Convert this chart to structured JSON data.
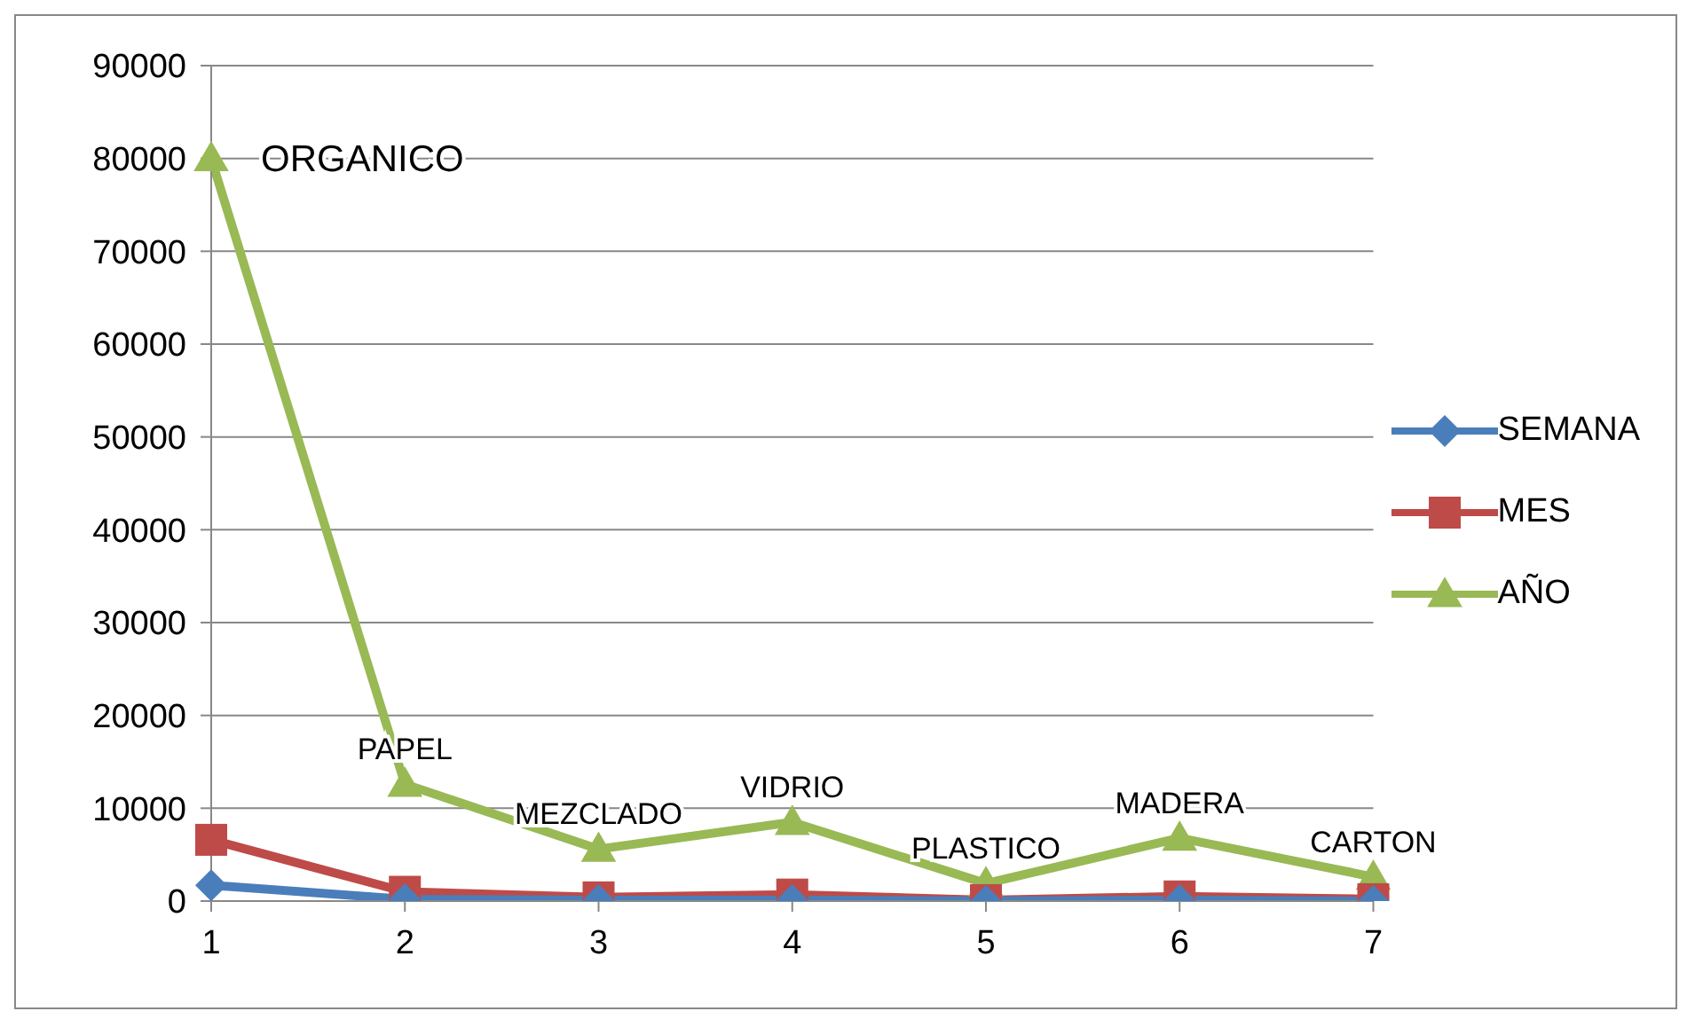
{
  "chart_data": {
    "type": "line",
    "categories": [
      "1",
      "2",
      "3",
      "4",
      "5",
      "6",
      "7"
    ],
    "series": [
      {
        "name": "SEMANA",
        "color": "#4a7ebb",
        "marker": "diamond",
        "values": [
          1700,
          200,
          100,
          100,
          0,
          100,
          0
        ]
      },
      {
        "name": "MES",
        "color": "#be4b48",
        "marker": "square",
        "values": [
          6600,
          1000,
          400,
          700,
          100,
          500,
          200
        ]
      },
      {
        "name": "AÑO",
        "color": "#98b954",
        "marker": "triangle",
        "values": [
          80000,
          12600,
          5600,
          8500,
          1900,
          6800,
          2600
        ]
      }
    ],
    "ylim": [
      0,
      90000
    ],
    "yticks": [
      0,
      10000,
      20000,
      30000,
      40000,
      50000,
      60000,
      70000,
      80000,
      90000
    ],
    "grid": "y",
    "legend": "right",
    "annotations": [
      {
        "text": "ORGANICO",
        "x": "1",
        "y": 80000
      },
      {
        "text": "PAPEL",
        "x": "2",
        "y": 12600
      },
      {
        "text": "MEZCLADO",
        "x": "3",
        "y": 5600
      },
      {
        "text": "VIDRIO",
        "x": "4",
        "y": 8500
      },
      {
        "text": "PLASTICO",
        "x": "5",
        "y": 1900
      },
      {
        "text": "MADERA",
        "x": "6",
        "y": 6800
      },
      {
        "text": "CARTON",
        "x": "7",
        "y": 2600
      }
    ]
  }
}
